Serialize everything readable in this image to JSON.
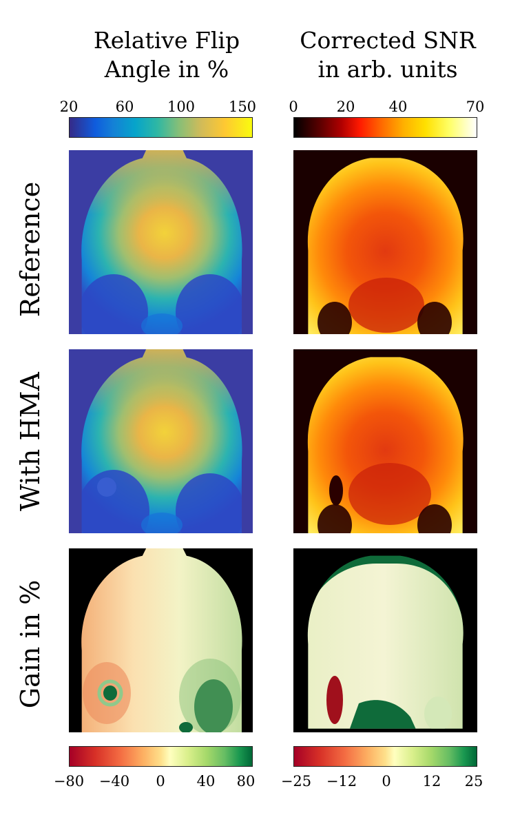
{
  "columns": {
    "flip": {
      "title_line1": "Relative Flip",
      "title_line2": "Angle in %"
    },
    "snr": {
      "title_line1": "Corrected SNR",
      "title_line2": "in arb. units"
    }
  },
  "colorbars": {
    "flip_top": {
      "ticks": [
        "20",
        "60",
        "100",
        "150"
      ],
      "colormap": "parula"
    },
    "snr_top": {
      "ticks": [
        "0",
        "20",
        "40",
        "70"
      ],
      "colormap": "hot"
    },
    "flip_gain": {
      "ticks": [
        "−80",
        "−40",
        "0",
        "40",
        "80"
      ],
      "colormap": "red-yellow-green"
    },
    "snr_gain": {
      "ticks": [
        "−25",
        "−12",
        "0",
        "12",
        "25"
      ],
      "colormap": "red-yellow-green"
    }
  },
  "rows": {
    "reference": {
      "label": "Reference"
    },
    "hma": {
      "label": "With HMA"
    },
    "gain": {
      "label": "Gain in %"
    }
  },
  "colors": {
    "parula_bg": "#3b3da3",
    "hot_bg": "#1a0000",
    "gain_bg": "#000000",
    "gain_green_dark": "#0f6b3a",
    "gain_red_dark": "#a0101c"
  }
}
